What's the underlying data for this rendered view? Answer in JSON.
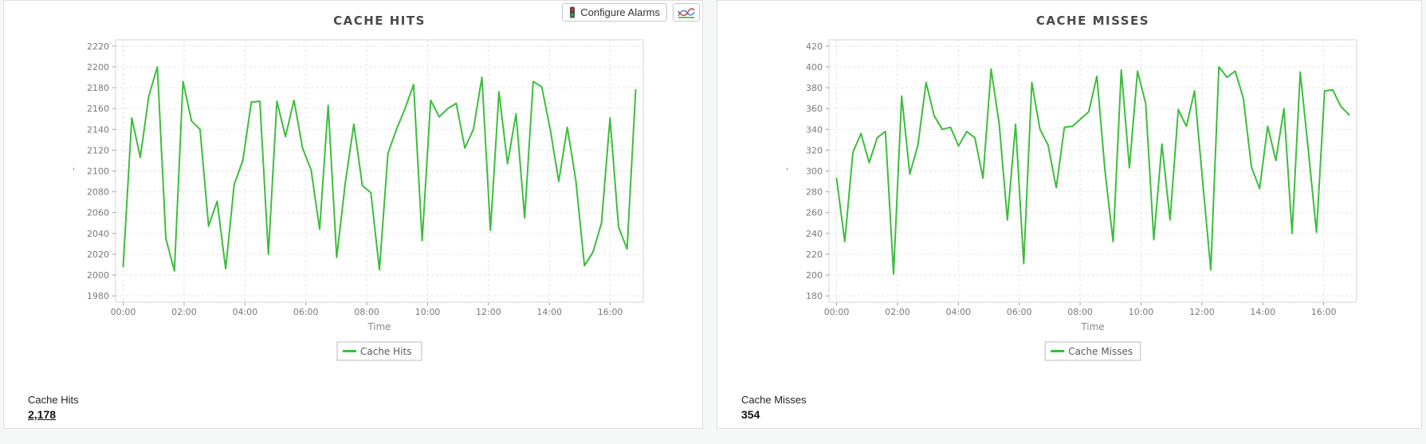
{
  "page": {
    "background": "#f6f7f7"
  },
  "toolbar": {
    "configure_alarms_label": "Configure Alarms",
    "icons": {
      "traffic_light": "traffic-light-icon",
      "chart_type": "line-chart-icon"
    },
    "icon_colors": {
      "red": "#cc2b2b",
      "green": "#2eae2e",
      "blue": "#5b87c5"
    }
  },
  "panels": [
    {
      "title": "CACHE HITS",
      "summary_label": "Cache Hits",
      "summary_value": "2,178",
      "value_underlined": true
    },
    {
      "title": "CACHE MISSES",
      "summary_label": "Cache Misses",
      "summary_value": "354",
      "value_underlined": false
    }
  ],
  "chart_data": [
    {
      "type": "line",
      "title": "CACHE HITS",
      "xlabel": "Time",
      "ylabel": "'",
      "grid": true,
      "legend_position": "bottom",
      "x_axis": {
        "tick_labels": [
          "00:00",
          "02:00",
          "04:00",
          "06:00",
          "08:00",
          "10:00",
          "12:00",
          "14:00",
          "16:00"
        ],
        "tick_minutes": [
          0,
          120,
          240,
          360,
          480,
          600,
          720,
          840,
          960
        ],
        "span_minutes": [
          0,
          1010
        ],
        "lim_minutes": [
          -15,
          1025
        ]
      },
      "y_axis": {
        "ticks": [
          1980,
          2000,
          2020,
          2040,
          2060,
          2080,
          2100,
          2120,
          2140,
          2160,
          2180,
          2200,
          2220
        ],
        "lim": [
          1974,
          2226
        ]
      },
      "series": [
        {
          "name": "Cache Hits",
          "color": "#3cbe3c",
          "values": [
            2008,
            2151,
            2113,
            2172,
            2200,
            2035,
            2004,
            2186,
            2148,
            2140,
            2047,
            2071,
            2006,
            2087,
            2110,
            2166,
            2167,
            2020,
            2167,
            2133,
            2168,
            2122,
            2101,
            2044,
            2163,
            2017,
            2088,
            2145,
            2086,
            2079,
            2005,
            2117,
            2140,
            2160,
            2183,
            2033,
            2168,
            2152,
            2160,
            2165,
            2122,
            2140,
            2190,
            2043,
            2176,
            2107,
            2155,
            2055,
            2186,
            2181,
            2140,
            2090,
            2142,
            2091,
            2009,
            2022,
            2050,
            2151,
            2046,
            2025,
            2178
          ]
        }
      ]
    },
    {
      "type": "line",
      "title": "CACHE MISSES",
      "xlabel": "Time",
      "ylabel": "'",
      "grid": true,
      "legend_position": "bottom",
      "x_axis": {
        "tick_labels": [
          "00:00",
          "02:00",
          "04:00",
          "06:00",
          "08:00",
          "10:00",
          "12:00",
          "14:00",
          "16:00"
        ],
        "tick_minutes": [
          0,
          120,
          240,
          360,
          480,
          600,
          720,
          840,
          960
        ],
        "span_minutes": [
          0,
          1010
        ],
        "lim_minutes": [
          -15,
          1025
        ]
      },
      "y_axis": {
        "ticks": [
          180,
          200,
          220,
          240,
          260,
          280,
          300,
          320,
          340,
          360,
          380,
          400,
          420
        ],
        "lim": [
          174,
          426
        ]
      },
      "series": [
        {
          "name": "Cache Misses",
          "color": "#3cbe3c",
          "values": [
            293,
            232,
            318,
            336,
            308,
            332,
            338,
            201,
            372,
            297,
            325,
            385,
            353,
            340,
            342,
            324,
            338,
            332,
            293,
            398,
            345,
            253,
            345,
            211,
            385,
            340,
            325,
            284,
            342,
            343,
            350,
            357,
            391,
            300,
            232,
            397,
            303,
            396,
            365,
            234,
            326,
            253,
            359,
            343,
            377,
            290,
            205,
            400,
            390,
            396,
            370,
            304,
            283,
            343,
            310,
            360,
            240,
            395,
            320,
            241,
            377,
            378,
            362,
            354
          ]
        }
      ]
    }
  ],
  "style": {
    "grid_color": "#e3e3e3",
    "frame_color": "#d5d5d5",
    "tick_color": "#9a9a9a",
    "legend_border": "#bbbbbb"
  }
}
